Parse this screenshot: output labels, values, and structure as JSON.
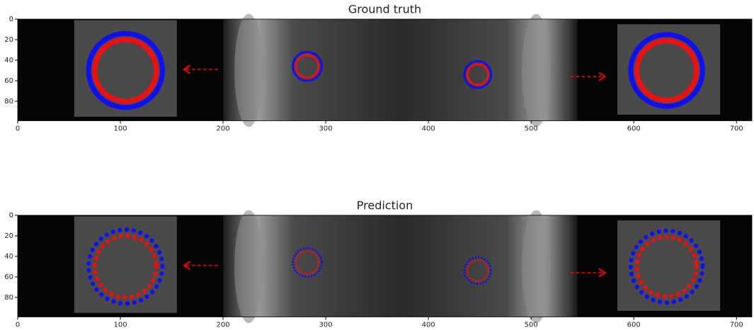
{
  "chart_data": [
    {
      "type": "image",
      "title": "Ground truth",
      "xlim": [
        0,
        715
      ],
      "ylim": [
        99,
        0
      ],
      "xticks": [
        0,
        100,
        200,
        300,
        400,
        500,
        600,
        700
      ],
      "yticks": [
        0,
        20,
        40,
        60,
        80
      ]
    },
    {
      "type": "image",
      "title": "Prediction",
      "xlim": [
        0,
        715
      ],
      "ylim": [
        99,
        0
      ],
      "xticks": [
        0,
        100,
        200,
        300,
        400,
        500,
        600,
        700
      ],
      "yticks": [
        0,
        20,
        40,
        60,
        80
      ]
    }
  ]
}
